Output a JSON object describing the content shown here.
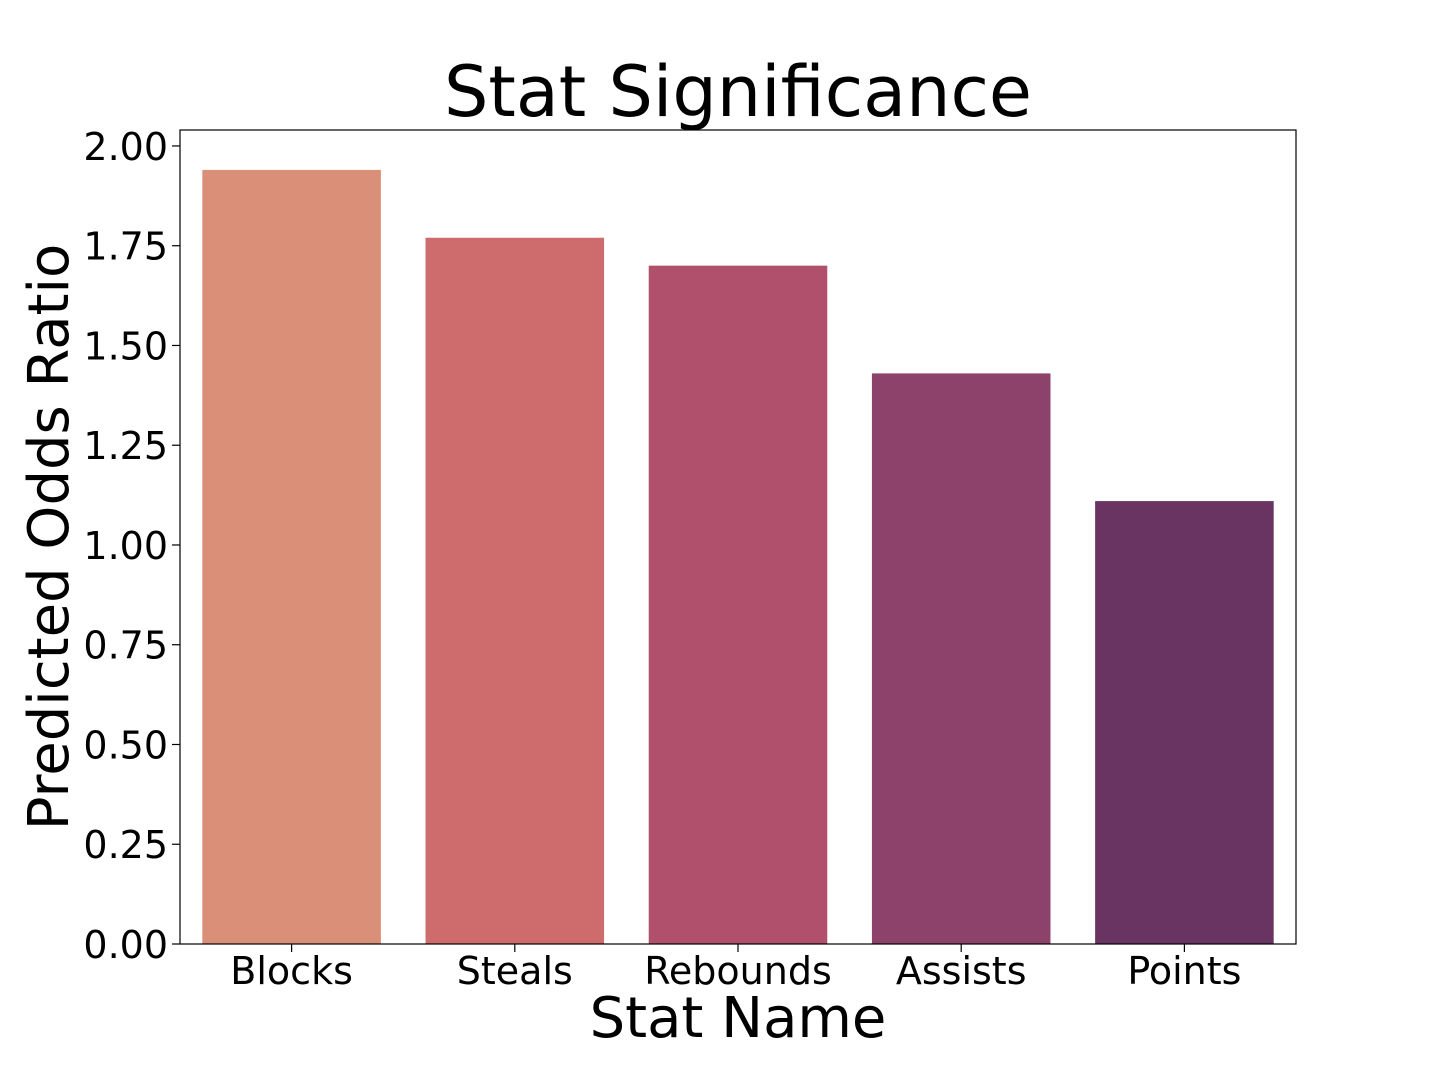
{
  "chart_data": {
    "type": "bar",
    "title": "Stat Significance",
    "xlabel": "Stat Name",
    "ylabel": "Predicted Odds Ratio",
    "categories": [
      "Blocks",
      "Steals",
      "Rebounds",
      "Assists",
      "Points"
    ],
    "values": [
      1.94,
      1.77,
      1.7,
      1.43,
      1.11
    ],
    "colors": [
      "#d98f78",
      "#ce6b6c",
      "#b0506c",
      "#8d426b",
      "#6a3462"
    ],
    "ylim": [
      0,
      2.04
    ],
    "yticks": [
      0.0,
      0.25,
      0.5,
      0.75,
      1.0,
      1.25,
      1.5,
      1.75,
      2.0
    ],
    "ytick_labels": [
      "0.00",
      "0.25",
      "0.50",
      "0.75",
      "1.00",
      "1.25",
      "1.50",
      "1.75",
      "2.00"
    ],
    "grid": false,
    "legend": "none"
  }
}
